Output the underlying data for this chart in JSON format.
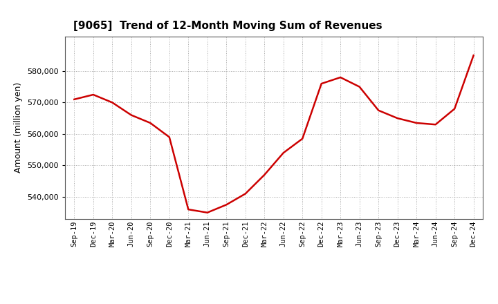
{
  "title": "[9065]  Trend of 12-Month Moving Sum of Revenues",
  "ylabel": "Amount (million yen)",
  "line_color": "#cc0000",
  "background_color": "#ffffff",
  "grid_color": "#aaaaaa",
  "x_labels": [
    "Sep-19",
    "Dec-19",
    "Mar-20",
    "Jun-20",
    "Sep-20",
    "Dec-20",
    "Mar-21",
    "Jun-21",
    "Sep-21",
    "Dec-21",
    "Mar-22",
    "Jun-22",
    "Sep-22",
    "Dec-22",
    "Mar-23",
    "Jun-23",
    "Sep-23",
    "Dec-23",
    "Mar-24",
    "Jun-24",
    "Sep-24",
    "Dec-24"
  ],
  "values": [
    571000,
    572500,
    570000,
    566000,
    563500,
    559000,
    536000,
    535000,
    537500,
    541000,
    547000,
    554000,
    558500,
    576000,
    578000,
    575000,
    567500,
    565000,
    563500,
    563000,
    568000,
    585000
  ],
  "ylim": [
    533000,
    591000
  ],
  "yticks": [
    540000,
    550000,
    560000,
    570000,
    580000
  ]
}
